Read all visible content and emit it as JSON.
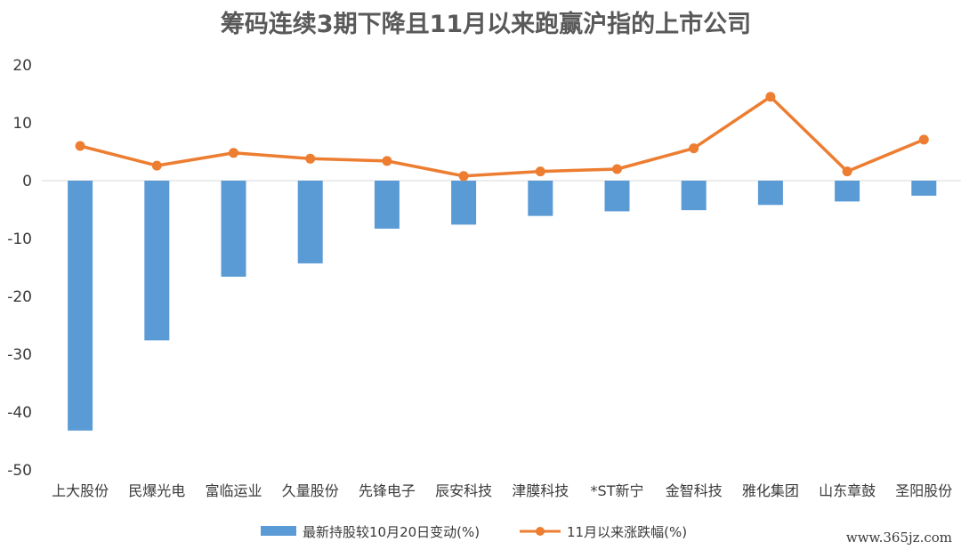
{
  "watermark": "www.365jz.com",
  "chart_data": {
    "type": "bar",
    "title": "筹码连续3期下降且11月以来跑赢沪指的上市公司",
    "categories": [
      "上大股份",
      "民爆光电",
      "富临运业",
      "久量股份",
      "先锋电子",
      "辰安科技",
      "津膜科技",
      "*ST新宁",
      "金智科技",
      "雅化集团",
      "山东章鼓",
      "圣阳股份"
    ],
    "ylim": [
      -50,
      20
    ],
    "yticks": [
      "20",
      "10",
      "0",
      "-10",
      "-20",
      "-30",
      "-40",
      "-50"
    ],
    "grid": false,
    "legend_position": "bottom",
    "series": [
      {
        "name": "最新持股较10月20日变动(%)",
        "kind": "bar",
        "color": "#5b9bd5",
        "values": [
          -43.2,
          -27.6,
          -16.6,
          -14.3,
          -8.3,
          -7.6,
          -6.1,
          -5.3,
          -5.1,
          -4.2,
          -3.6,
          -2.6
        ]
      },
      {
        "name": "11月以来涨跌幅(%)",
        "kind": "line",
        "color": "#ed7d31",
        "values": [
          6.0,
          2.6,
          4.8,
          3.8,
          3.4,
          0.8,
          1.6,
          2.0,
          5.6,
          14.5,
          1.6,
          7.1
        ]
      }
    ]
  }
}
